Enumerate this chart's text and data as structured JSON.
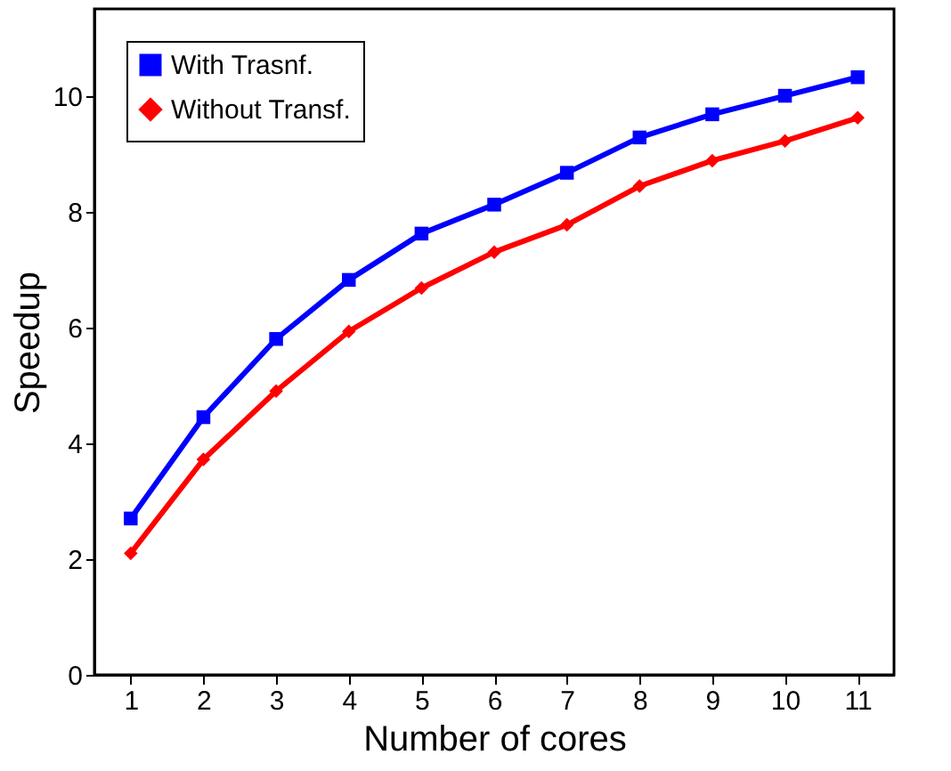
{
  "chart_data": {
    "type": "line",
    "xlabel": "Number of cores",
    "ylabel": "Speedup",
    "x": [
      1,
      2,
      3,
      4,
      5,
      6,
      7,
      8,
      9,
      10,
      11
    ],
    "series": [
      {
        "name": "With Trasnf.",
        "color": "#0000ff",
        "marker": "square",
        "values": [
          2.7,
          4.45,
          5.8,
          6.82,
          7.62,
          8.12,
          8.67,
          9.28,
          9.68,
          10.0,
          10.32
        ]
      },
      {
        "name": "Without Transf.",
        "color": "#ff0000",
        "marker": "diamond",
        "values": [
          2.1,
          3.72,
          4.9,
          5.93,
          6.68,
          7.3,
          7.77,
          8.44,
          8.88,
          9.22,
          9.62
        ]
      }
    ],
    "xlim": [
      0.5,
      11.5
    ],
    "xticks": [
      1,
      2,
      3,
      4,
      5,
      6,
      7,
      8,
      9,
      10,
      11
    ],
    "ylim": [
      0,
      11.5
    ],
    "yticks": [
      0,
      2,
      4,
      6,
      8,
      10
    ],
    "grid": false,
    "legend": "top left",
    "line_style": "solid"
  }
}
